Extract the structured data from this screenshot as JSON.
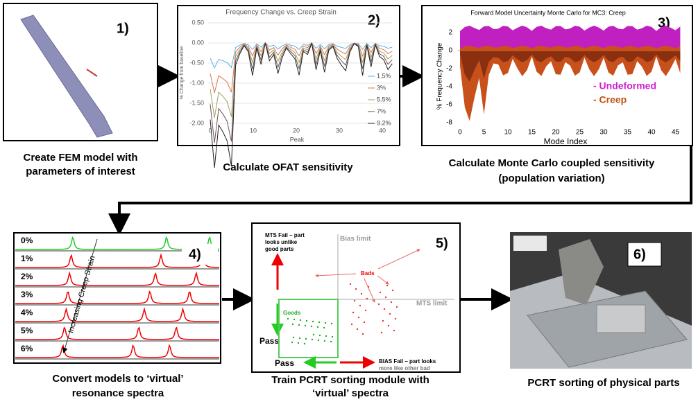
{
  "panels": [
    {
      "number": "1)",
      "caption": [
        "Create FEM model with",
        "parameters of interest"
      ]
    },
    {
      "number": "2)",
      "caption": [
        "Calculate OFAT sensitivity"
      ]
    },
    {
      "number": "3)",
      "caption": [
        "Calculate Monte Carlo coupled sensitivity",
        "(population variation)"
      ]
    },
    {
      "number": "4)",
      "caption": [
        "Convert models to ‘virtual’",
        "resonance spectra"
      ]
    },
    {
      "number": "5)",
      "caption": [
        "Train PCRT sorting module with",
        "‘virtual’ spectra"
      ]
    },
    {
      "number": "6)",
      "caption": [
        "PCRT sorting of physical parts"
      ]
    }
  ],
  "ofat_chart": {
    "title": "Frequency Change vs. Creep Strain",
    "y_label": "% Change from baseline",
    "x_label": "Peak",
    "y_ticks": [
      "0.50",
      "0.00",
      "-0.50",
      "-1.00",
      "-1.50",
      "-2.00"
    ],
    "x_ticks": [
      "0",
      "10",
      "20",
      "30",
      "40"
    ],
    "legend": [
      "1.5%",
      "3%",
      "5.5%",
      "7%",
      "9.2%"
    ]
  },
  "mc_chart": {
    "title": "Forward Model Uncertainty Monte Carlo for MC3: Creep",
    "y_label": "% Frequency Change",
    "x_label": "Mode Index",
    "y_ticks": [
      "2",
      "0",
      "-2",
      "-4",
      "-6",
      "-8"
    ],
    "x_ticks": [
      "0",
      "5",
      "10",
      "15",
      "20",
      "25",
      "30",
      "35",
      "40",
      "45"
    ],
    "legend": [
      "- Undeformed",
      "- Creep"
    ]
  },
  "spectra": {
    "levels": [
      "0%",
      "1%",
      "2%",
      "3%",
      "4%",
      "5%",
      "6%"
    ],
    "annotation": "Increasing Creep Strain"
  },
  "sorting": {
    "bias_limit": "Bias limit",
    "mts_limit": "MTS limit",
    "mts_fail": [
      "MTS Fail – part",
      "looks unlike",
      "good parts"
    ],
    "bads": "Bads",
    "goods": "Goods",
    "pass_vertical": "Pass",
    "pass_horizontal": "Pass",
    "bias_fail": [
      "BIAS Fail – part looks",
      "more like other bad"
    ]
  }
}
